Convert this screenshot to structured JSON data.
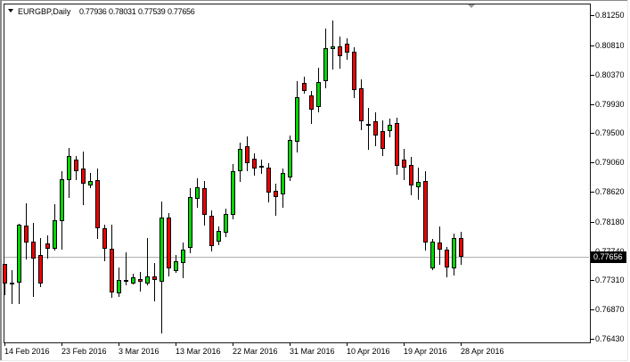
{
  "header": {
    "symbol_label": "EURGBP,Daily",
    "open": "0.77936",
    "high": "0.78031",
    "low": "0.77539",
    "close": "0.77656"
  },
  "price_axis": {
    "labels": [
      "0.81250",
      "0.80810",
      "0.80370",
      "0.79930",
      "0.79500",
      "0.79060",
      "0.78620",
      "0.78180",
      "0.77740",
      "0.77310",
      "0.76870",
      "0.76430"
    ],
    "current_price": "0.77656"
  },
  "time_axis": {
    "labels": [
      "14 Feb 2016",
      "23 Feb 2016",
      "3 Mar 2016",
      "13 Mar 2016",
      "22 Mar 2016",
      "31 Mar 2016",
      "10 Apr 2016",
      "19 Apr 2016",
      "28 Apr 2016"
    ]
  },
  "colors": {
    "background": "#ffffff",
    "bull_fill": "#00d800",
    "bear_fill": "#ee0000",
    "candle_outline": "#000000",
    "plot_border": "#1a1a1a",
    "axis_text": "#000000",
    "current_price_line": "#b0b0b0",
    "price_box_bg": "#000000",
    "price_box_text": "#ffffff",
    "frame_dark": "#8a8a8a",
    "frame_light": "#e8e8e8",
    "shift_marker": "#9a9a9a"
  },
  "chart_data": {
    "type": "candlestick",
    "title": "EURGBP,Daily",
    "symbol": "EURGBP",
    "timeframe": "Daily",
    "xlabel": "",
    "ylabel": "",
    "x_tick_labels": [
      "14 Feb 2016",
      "23 Feb 2016",
      "3 Mar 2016",
      "13 Mar 2016",
      "22 Mar 2016",
      "31 Mar 2016",
      "10 Apr 2016",
      "19 Apr 2016",
      "28 Apr 2016"
    ],
    "y_tick_values": [
      0.8125,
      0.8081,
      0.8037,
      0.7993,
      0.795,
      0.7906,
      0.7862,
      0.7818,
      0.7774,
      0.7731,
      0.7687,
      0.7643
    ],
    "ylim": [
      0.76395,
      0.81425
    ],
    "grid": false,
    "legend": false,
    "last_close": 0.77656,
    "bars": [
      {
        "o": 0.77551,
        "h": 0.77556,
        "l": 0.7709,
        "c": 0.77258
      },
      {
        "o": 0.77268,
        "h": 0.77463,
        "l": 0.76955,
        "c": 0.77248
      },
      {
        "o": 0.77268,
        "h": 0.78151,
        "l": 0.76947,
        "c": 0.78131
      },
      {
        "o": 0.78128,
        "h": 0.78448,
        "l": 0.77617,
        "c": 0.77863
      },
      {
        "o": 0.77883,
        "h": 0.7816,
        "l": 0.77065,
        "c": 0.77633
      },
      {
        "o": 0.7769,
        "h": 0.7793,
        "l": 0.772,
        "c": 0.77252
      },
      {
        "o": 0.77852,
        "h": 0.77979,
        "l": 0.77636,
        "c": 0.77783
      },
      {
        "o": 0.77774,
        "h": 0.78434,
        "l": 0.77754,
        "c": 0.782
      },
      {
        "o": 0.78193,
        "h": 0.78932,
        "l": 0.77757,
        "c": 0.78816
      },
      {
        "o": 0.78795,
        "h": 0.79277,
        "l": 0.78537,
        "c": 0.79158
      },
      {
        "o": 0.79108,
        "h": 0.7916,
        "l": 0.78799,
        "c": 0.78932
      },
      {
        "o": 0.7897,
        "h": 0.7922,
        "l": 0.78426,
        "c": 0.78744
      },
      {
        "o": 0.78715,
        "h": 0.78908,
        "l": 0.78683,
        "c": 0.78789
      },
      {
        "o": 0.78796,
        "h": 0.78966,
        "l": 0.7792,
        "c": 0.78086
      },
      {
        "o": 0.78086,
        "h": 0.78138,
        "l": 0.77584,
        "c": 0.77783
      },
      {
        "o": 0.77783,
        "h": 0.78131,
        "l": 0.77043,
        "c": 0.7713
      },
      {
        "o": 0.77119,
        "h": 0.77496,
        "l": 0.77054,
        "c": 0.77313
      },
      {
        "o": 0.77318,
        "h": 0.77723,
        "l": 0.77237,
        "c": 0.77305
      },
      {
        "o": 0.7726,
        "h": 0.77411,
        "l": 0.77249,
        "c": 0.77357
      },
      {
        "o": 0.77326,
        "h": 0.77432,
        "l": 0.77135,
        "c": 0.7729
      },
      {
        "o": 0.77264,
        "h": 0.7793,
        "l": 0.77232,
        "c": 0.77361
      },
      {
        "o": 0.77371,
        "h": 0.77561,
        "l": 0.76997,
        "c": 0.77306
      },
      {
        "o": 0.7729,
        "h": 0.78479,
        "l": 0.7651,
        "c": 0.78237
      },
      {
        "o": 0.78237,
        "h": 0.78307,
        "l": 0.77371,
        "c": 0.77484
      },
      {
        "o": 0.7745,
        "h": 0.77686,
        "l": 0.77419,
        "c": 0.77586
      },
      {
        "o": 0.77568,
        "h": 0.77868,
        "l": 0.77342,
        "c": 0.77765
      },
      {
        "o": 0.77794,
        "h": 0.78684,
        "l": 0.77705,
        "c": 0.78551
      },
      {
        "o": 0.78514,
        "h": 0.78827,
        "l": 0.78389,
        "c": 0.78694
      },
      {
        "o": 0.78675,
        "h": 0.78784,
        "l": 0.78117,
        "c": 0.78279
      },
      {
        "o": 0.78262,
        "h": 0.78345,
        "l": 0.77741,
        "c": 0.77813
      },
      {
        "o": 0.77879,
        "h": 0.78115,
        "l": 0.7783,
        "c": 0.78039
      },
      {
        "o": 0.78012,
        "h": 0.7838,
        "l": 0.77951,
        "c": 0.78299
      },
      {
        "o": 0.78278,
        "h": 0.79035,
        "l": 0.78217,
        "c": 0.78933
      },
      {
        "o": 0.78933,
        "h": 0.79362,
        "l": 0.78769,
        "c": 0.7926
      },
      {
        "o": 0.79299,
        "h": 0.79456,
        "l": 0.78928,
        "c": 0.79045
      },
      {
        "o": 0.79111,
        "h": 0.79193,
        "l": 0.78868,
        "c": 0.78966
      },
      {
        "o": 0.7901,
        "h": 0.79103,
        "l": 0.78888,
        "c": 0.79
      },
      {
        "o": 0.78981,
        "h": 0.79045,
        "l": 0.78464,
        "c": 0.78612
      },
      {
        "o": 0.78641,
        "h": 0.78745,
        "l": 0.78272,
        "c": 0.78552
      },
      {
        "o": 0.78591,
        "h": 0.78966,
        "l": 0.78383,
        "c": 0.78907
      },
      {
        "o": 0.78839,
        "h": 0.79458,
        "l": 0.78785,
        "c": 0.794
      },
      {
        "o": 0.79364,
        "h": 0.80279,
        "l": 0.79209,
        "c": 0.80033
      },
      {
        "o": 0.80241,
        "h": 0.80339,
        "l": 0.80084,
        "c": 0.80124
      },
      {
        "o": 0.80066,
        "h": 0.80124,
        "l": 0.79634,
        "c": 0.79851
      },
      {
        "o": 0.79893,
        "h": 0.80466,
        "l": 0.79812,
        "c": 0.80262
      },
      {
        "o": 0.80271,
        "h": 0.81055,
        "l": 0.80163,
        "c": 0.80761
      },
      {
        "o": 0.80757,
        "h": 0.81176,
        "l": 0.80445,
        "c": 0.80797
      },
      {
        "o": 0.80792,
        "h": 0.80937,
        "l": 0.80465,
        "c": 0.80645
      },
      {
        "o": 0.80836,
        "h": 0.8091,
        "l": 0.8059,
        "c": 0.80692
      },
      {
        "o": 0.80715,
        "h": 0.80776,
        "l": 0.80018,
        "c": 0.80141
      },
      {
        "o": 0.80161,
        "h": 0.80305,
        "l": 0.79546,
        "c": 0.7967
      },
      {
        "o": 0.79631,
        "h": 0.79875,
        "l": 0.79248,
        "c": 0.79611
      },
      {
        "o": 0.7967,
        "h": 0.79814,
        "l": 0.79301,
        "c": 0.79464
      },
      {
        "o": 0.79529,
        "h": 0.79687,
        "l": 0.79153,
        "c": 0.79266
      },
      {
        "o": 0.79529,
        "h": 0.7971,
        "l": 0.79435,
        "c": 0.79623
      },
      {
        "o": 0.79645,
        "h": 0.79723,
        "l": 0.78873,
        "c": 0.79016
      },
      {
        "o": 0.79108,
        "h": 0.79265,
        "l": 0.78795,
        "c": 0.78991
      },
      {
        "o": 0.7903,
        "h": 0.79148,
        "l": 0.78579,
        "c": 0.78716
      },
      {
        "o": 0.7869,
        "h": 0.78991,
        "l": 0.78506,
        "c": 0.78776
      },
      {
        "o": 0.78779,
        "h": 0.78926,
        "l": 0.77749,
        "c": 0.77864
      },
      {
        "o": 0.77488,
        "h": 0.7792,
        "l": 0.77462,
        "c": 0.77881
      },
      {
        "o": 0.77864,
        "h": 0.7811,
        "l": 0.77544,
        "c": 0.77757
      },
      {
        "o": 0.77764,
        "h": 0.77797,
        "l": 0.77348,
        "c": 0.77495
      },
      {
        "o": 0.77479,
        "h": 0.78003,
        "l": 0.77381,
        "c": 0.77931
      },
      {
        "o": 0.77936,
        "h": 0.78031,
        "l": 0.77539,
        "c": 0.77656
      }
    ]
  }
}
